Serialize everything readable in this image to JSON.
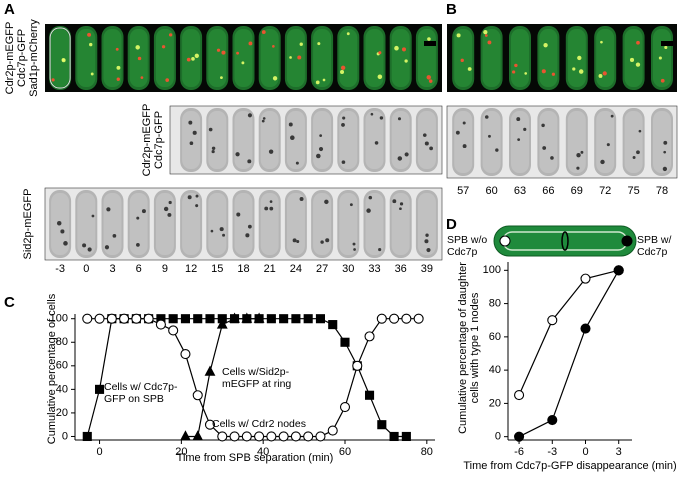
{
  "panel_a": {
    "label": "A",
    "row1_label": [
      "Cdr2p-mEGFP",
      "Cdc7p-GFP",
      "Sad1p-mCherry"
    ],
    "row2_label": [
      "Cdr2p-mEGFP",
      "Cdc7p-GFP"
    ],
    "row3_label": [
      "Sid2p-mEGFP"
    ],
    "times": [
      -3,
      0,
      3,
      6,
      9,
      12,
      15,
      18,
      21,
      24,
      27,
      30,
      33,
      36,
      39
    ]
  },
  "panel_b": {
    "label": "B",
    "times": [
      57,
      60,
      63,
      66,
      69,
      72,
      75,
      78
    ]
  },
  "chart_data": [
    {
      "type": "line",
      "label": "C",
      "x_label": "Time from SPB separation (min)",
      "y_label": "Cumulative percentage of cells",
      "xlim": [
        -6,
        82
      ],
      "ylim": [
        -3,
        104
      ],
      "xticks": [
        0,
        20,
        40,
        60,
        80
      ],
      "yticks": [
        0,
        20,
        40,
        60,
        80,
        100
      ],
      "series": [
        {
          "name": "Cells w/ Cdc7p-GFP on SPB",
          "marker": "square",
          "color": "#000000",
          "marker_fill": "#000000",
          "x": [
            -3,
            0,
            3,
            6,
            9,
            12,
            15,
            18,
            21,
            24,
            27,
            30,
            33,
            36,
            39,
            42,
            45,
            48,
            51,
            54,
            57,
            60,
            63,
            66,
            69,
            72,
            75
          ],
          "values": [
            0,
            40,
            100,
            100,
            100,
            100,
            100,
            100,
            100,
            100,
            100,
            100,
            100,
            100,
            100,
            100,
            100,
            100,
            100,
            100,
            95,
            80,
            60,
            35,
            10,
            0,
            0
          ]
        },
        {
          "name": "Cells w/Sid2p-mEGFP at ring",
          "marker": "triangle",
          "color": "#000000",
          "marker_fill": "#000000",
          "x": [
            21,
            24,
            27,
            30,
            33,
            36,
            39
          ],
          "values": [
            0,
            0,
            55,
            95,
            100,
            100,
            100
          ]
        },
        {
          "name": "Cells w/ Cdr2 nodes",
          "marker": "circle",
          "color": "#000000",
          "marker_fill": "#ffffff",
          "x": [
            -3,
            0,
            3,
            6,
            9,
            12,
            15,
            18,
            21,
            24,
            27,
            30,
            33,
            36,
            39,
            42,
            45,
            48,
            51,
            54,
            57,
            60,
            63,
            66,
            69,
            72,
            75,
            78
          ],
          "values": [
            100,
            100,
            100,
            100,
            100,
            100,
            95,
            90,
            70,
            35,
            10,
            0,
            0,
            0,
            0,
            0,
            0,
            0,
            0,
            0,
            5,
            25,
            60,
            85,
            100,
            100,
            100,
            100
          ]
        }
      ]
    },
    {
      "type": "line",
      "label": "D",
      "x_label": "Time from Cdc7p-GFP disappearance (min)",
      "y_label": "Cumulative percentage of daughter cells with type 1 nodes",
      "xlim": [
        -7,
        4.2
      ],
      "ylim": [
        -2,
        105
      ],
      "xticks": [
        -6,
        -3,
        0,
        3
      ],
      "yticks": [
        0,
        20,
        40,
        60,
        80,
        100
      ],
      "series": [
        {
          "name": "SPB w/o Cdc7p",
          "marker": "circle",
          "color": "#000000",
          "marker_fill": "#ffffff",
          "x": [
            -6,
            -3,
            0,
            3
          ],
          "values": [
            25,
            70,
            95,
            100
          ]
        },
        {
          "name": "SPB w/ Cdc7p",
          "marker": "circle",
          "color": "#000000",
          "marker_fill": "#000000",
          "x": [
            -6,
            -3,
            0,
            3
          ],
          "values": [
            0,
            10,
            65,
            100
          ]
        }
      ]
    }
  ]
}
